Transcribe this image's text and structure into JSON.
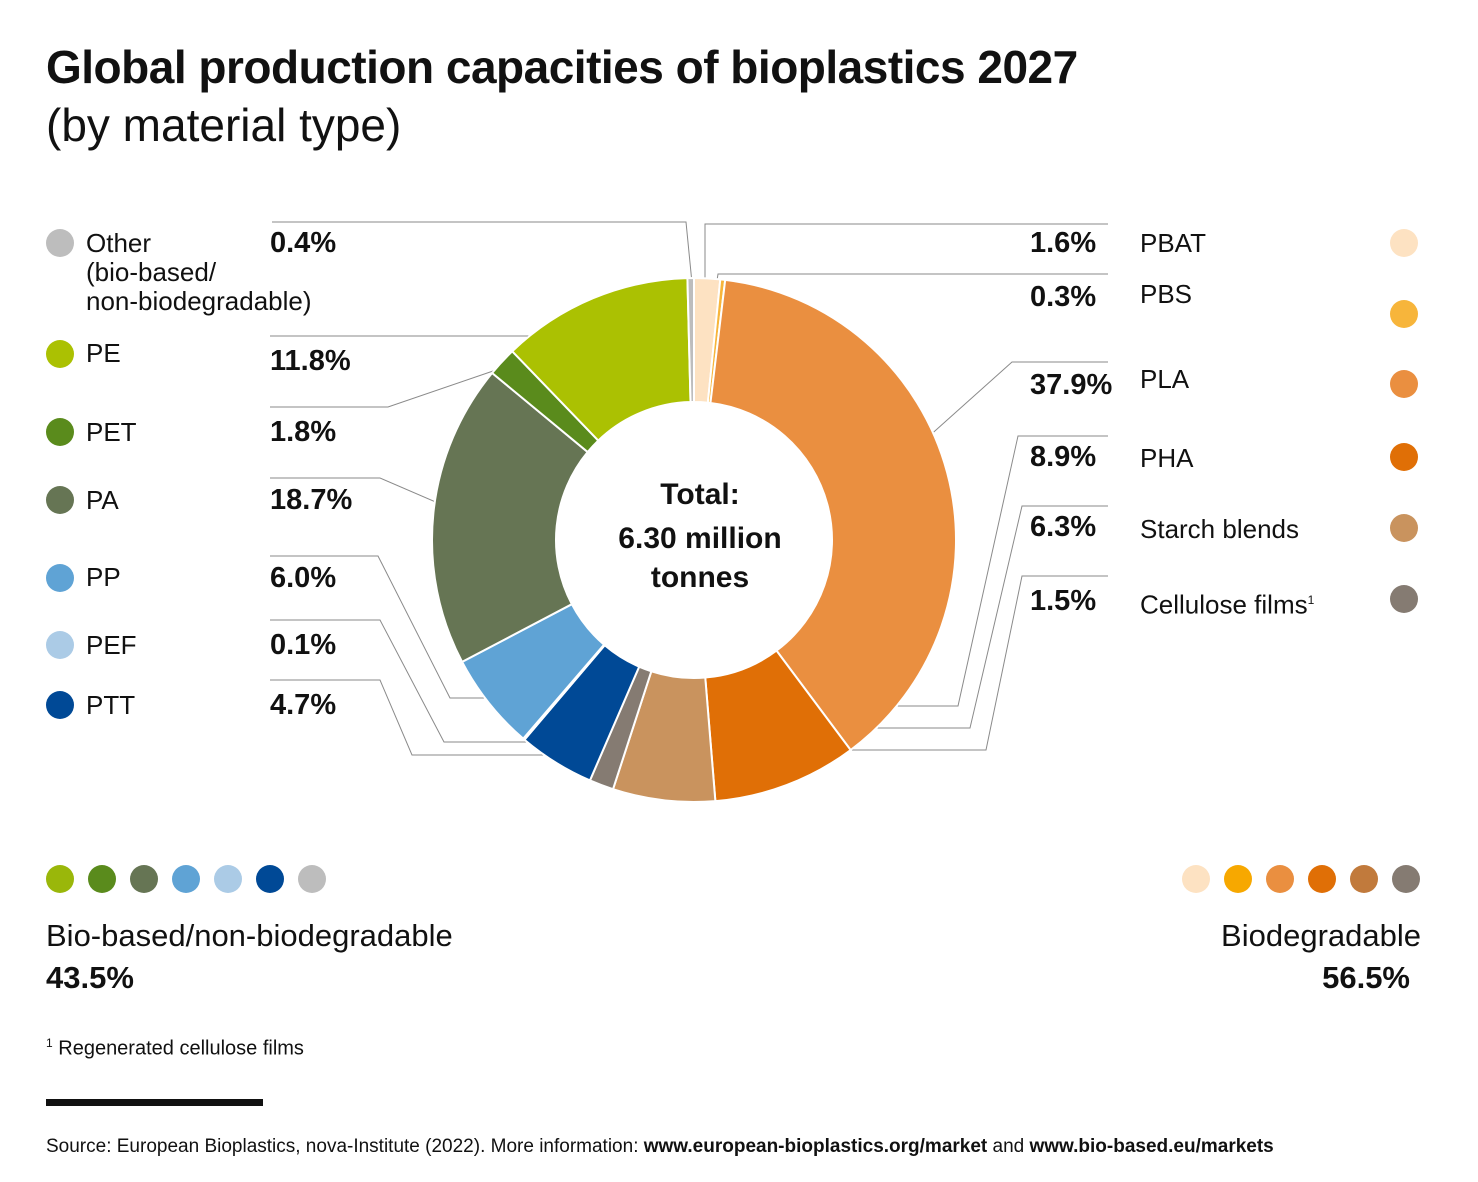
{
  "title": "Global production capacities of bioplastics 2027",
  "subtitle": "(by material type)",
  "center": {
    "line1": "Total:",
    "line2": "6.30 million",
    "line3": "tonnes"
  },
  "chart_data": {
    "type": "pie",
    "title": "Global production capacities of bioplastics 2027",
    "subtitle": "(by material type)",
    "unit": "%",
    "total": "6.30 million tonnes",
    "slices": [
      {
        "name": "PBAT",
        "value": 1.6,
        "label": "1.6%",
        "color": "#FDE2C2"
      },
      {
        "name": "PBS",
        "value": 0.3,
        "label": "0.3%",
        "color": "#F7B53B"
      },
      {
        "name": "PLA",
        "value": 37.9,
        "label": "37.9%",
        "color": "#EA8F40"
      },
      {
        "name": "PHA",
        "value": 8.9,
        "label": "8.9%",
        "color": "#E06F06"
      },
      {
        "name": "Starch blends",
        "value": 6.3,
        "label": "6.3%",
        "color": "#C9935E"
      },
      {
        "name": "Cellulose films",
        "value": 1.5,
        "label": "1.5%",
        "color": "#857B72"
      },
      {
        "name": "PTT",
        "value": 4.7,
        "label": "4.7%",
        "color": "#004996"
      },
      {
        "name": "PEF",
        "value": 0.1,
        "label": "0.1%",
        "color": "#ABCBE6"
      },
      {
        "name": "PP",
        "value": 6.0,
        "label": "6.0%",
        "color": "#5FA3D5"
      },
      {
        "name": "PA",
        "value": 18.7,
        "label": "18.7%",
        "color": "#667554"
      },
      {
        "name": "PET",
        "value": 1.8,
        "label": "1.8%",
        "color": "#5A8B1C"
      },
      {
        "name": "PE",
        "value": 11.8,
        "label": "11.8%",
        "color": "#ABC102"
      },
      {
        "name": "Other (bio-based/ non-biodegradable)",
        "value": 0.4,
        "label": "0.4%",
        "color": "#BDBDBD"
      }
    ]
  },
  "legend_left": [
    {
      "label": "Other",
      "label2": "(bio-based/",
      "label3": "non-biodegradable)",
      "pct": "0.4%",
      "color": "#BDBDBD"
    },
    {
      "label": "PE",
      "pct": "11.8%",
      "color": "#ABC102"
    },
    {
      "label": "PET",
      "pct": "1.8%",
      "color": "#5A8B1C"
    },
    {
      "label": "PA",
      "pct": "18.7%",
      "color": "#667554"
    },
    {
      "label": "PP",
      "pct": "6.0%",
      "color": "#5FA3D5"
    },
    {
      "label": "PEF",
      "pct": "0.1%",
      "color": "#ABCBE6"
    },
    {
      "label": "PTT",
      "pct": "4.7%",
      "color": "#004996"
    }
  ],
  "legend_right": [
    {
      "label": "PBAT",
      "pct": "1.6%",
      "color": "#FDE2C2"
    },
    {
      "label": "PBS",
      "pct": "0.3%",
      "color": "#F7B53B"
    },
    {
      "label": "PLA",
      "pct": "37.9%",
      "color": "#EA8F40"
    },
    {
      "label": "PHA",
      "pct": "8.9%",
      "color": "#E06F06"
    },
    {
      "label": "Starch blends",
      "pct": "6.3%",
      "color": "#C9935E"
    },
    {
      "label": "Cellulose films",
      "sup": "1",
      "pct": "1.5%",
      "color": "#857B72"
    }
  ],
  "groups": {
    "left": {
      "label": "Bio-based/non-biodegradable",
      "value": "43.5%",
      "colors": [
        "#9AB70A",
        "#5A8B1C",
        "#667554",
        "#5FA3D5",
        "#ABCBE6",
        "#004996",
        "#BDBDBD"
      ]
    },
    "right": {
      "label": "Biodegradable",
      "value": "56.5%",
      "colors": [
        "#FDE2C2",
        "#F7A800",
        "#EA8F40",
        "#E06F06",
        "#C17A3C",
        "#857B72"
      ]
    }
  },
  "footnote": {
    "sup": "1",
    "text": "Regenerated cellulose films"
  },
  "source": {
    "prefix": "Source: European Bioplastics, nova-Institute (2022). More information: ",
    "link1": "www.european-bioplastics.org/market",
    "mid": " and ",
    "link2": "www.bio-based.eu/markets"
  }
}
